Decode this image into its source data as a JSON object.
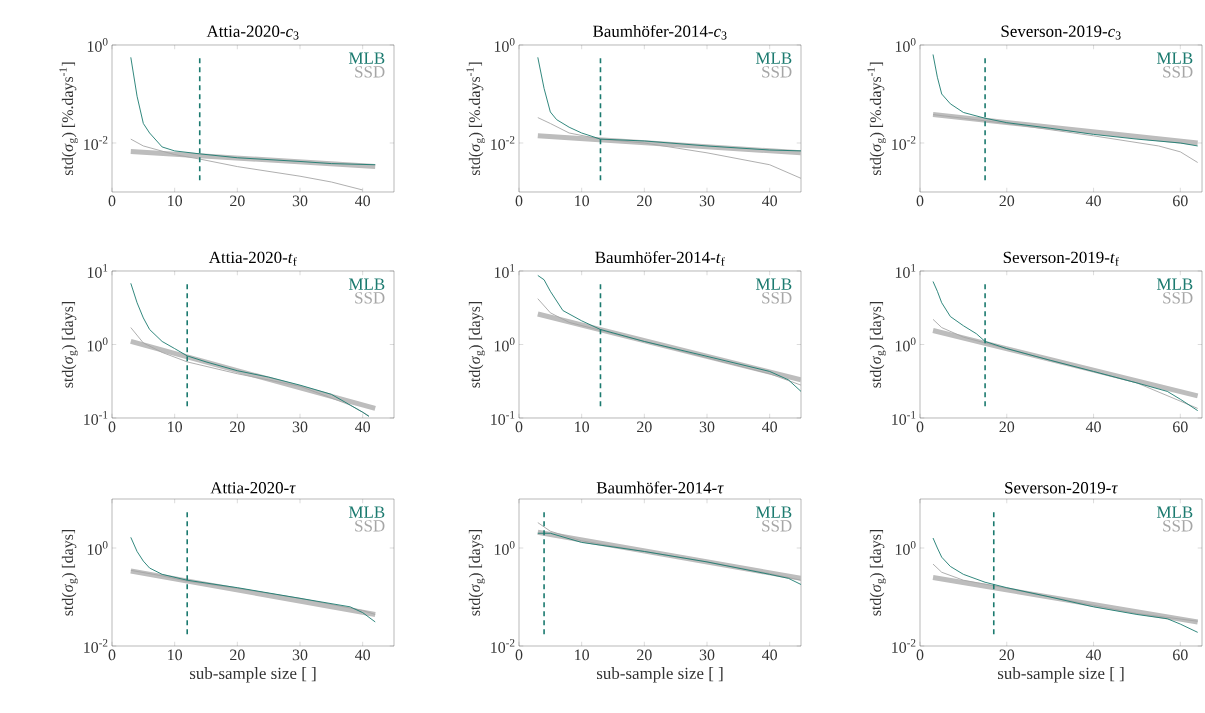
{
  "chart_data": [
    {
      "type": "line",
      "title": "Attia-2020-*c*$_{3}$",
      "ylabel": "std(*σ*$_{g}$) [%.days$^{-1}$]",
      "log": "y",
      "legend": "top right",
      "xlim": [
        0,
        45
      ],
      "xticks": [
        0,
        10,
        20,
        30,
        40
      ],
      "ylim": [
        0.001,
        1
      ],
      "yticks": [
        {
          "value": 0.01,
          "label": "10$^{-2}$"
        },
        {
          "value": 1,
          "label": "10$^{0}$"
        }
      ],
      "ref_lines": [
        {
          "axis": "x",
          "value": 14,
          "color": "#1b7a6f",
          "line_style": "dashed"
        }
      ],
      "series": [
        {
          "color": "#bdbdbd",
          "x": [
            3,
            42
          ],
          "values": [
            0.0067,
            0.0033
          ]
        },
        {
          "name": "SSD",
          "color": "#a6a6a6",
          "x": [
            3,
            5,
            10,
            14,
            20,
            30,
            35,
            40
          ],
          "values": [
            0.012,
            0.0087,
            0.0058,
            0.0047,
            0.0033,
            0.0021,
            0.0016,
            0.0011
          ]
        },
        {
          "name": "MLB",
          "color": "#1b7a6f",
          "x": [
            3,
            4,
            5,
            6,
            8,
            10,
            14,
            20,
            30,
            35,
            42
          ],
          "values": [
            0.56,
            0.09,
            0.025,
            0.016,
            0.0083,
            0.0069,
            0.006,
            0.005,
            0.0042,
            0.0038,
            0.0036
          ]
        }
      ]
    },
    {
      "type": "line",
      "title": "Baumhöfer-2014-*c*$_{3}$",
      "ylabel": "std(*σ*$_{g}$) [%.days$^{-1}$]",
      "log": "y",
      "legend": "top right",
      "xlim": [
        0,
        45
      ],
      "xticks": [
        0,
        10,
        20,
        30,
        40
      ],
      "ylim": [
        0.001,
        1
      ],
      "yticks": [
        {
          "value": 0.01,
          "label": "10$^{-2}$"
        },
        {
          "value": 1,
          "label": "10$^{0}$"
        }
      ],
      "ref_lines": [
        {
          "axis": "x",
          "value": 13,
          "color": "#1b7a6f",
          "line_style": "dashed"
        }
      ],
      "series": [
        {
          "color": "#bdbdbd",
          "x": [
            3,
            45
          ],
          "values": [
            0.014,
            0.0063
          ]
        },
        {
          "name": "SSD",
          "color": "#a6a6a6",
          "x": [
            3,
            5,
            8,
            13,
            20,
            30,
            40,
            45
          ],
          "values": [
            0.033,
            0.025,
            0.016,
            0.012,
            0.01,
            0.0063,
            0.0036,
            0.0019
          ]
        },
        {
          "name": "MLB",
          "color": "#1b7a6f",
          "x": [
            3,
            4,
            5,
            6,
            8,
            10,
            13,
            20,
            30,
            40,
            45
          ],
          "values": [
            0.56,
            0.13,
            0.043,
            0.03,
            0.021,
            0.016,
            0.012,
            0.011,
            0.0087,
            0.0072,
            0.0069
          ]
        }
      ]
    },
    {
      "type": "line",
      "title": "Severson-2019-*c*$_{3}$",
      "ylabel": "std(*σ*$_{g}$) [%.days$^{-1}$]",
      "log": "y",
      "legend": "top right",
      "xlim": [
        0,
        65
      ],
      "xticks": [
        0,
        20,
        40,
        60
      ],
      "ylim": [
        0.001,
        1
      ],
      "yticks": [
        {
          "value": 0.01,
          "label": "10$^{-2}$"
        },
        {
          "value": 1,
          "label": "10$^{0}$"
        }
      ],
      "ref_lines": [
        {
          "axis": "x",
          "value": 15,
          "color": "#1b7a6f",
          "line_style": "dashed"
        }
      ],
      "series": [
        {
          "color": "#bdbdbd",
          "x": [
            3,
            64
          ],
          "values": [
            0.038,
            0.01
          ]
        },
        {
          "name": "SSD",
          "color": "#a6a6a6",
          "x": [
            3,
            10,
            20,
            40,
            55,
            60,
            64
          ],
          "values": [
            0.038,
            0.032,
            0.025,
            0.014,
            0.0087,
            0.0066,
            0.004
          ]
        },
        {
          "name": "MLB",
          "color": "#1b7a6f",
          "x": [
            3,
            4,
            5,
            7,
            10,
            15,
            20,
            30,
            40,
            50,
            60,
            64
          ],
          "values": [
            0.64,
            0.22,
            0.1,
            0.063,
            0.042,
            0.032,
            0.026,
            0.02,
            0.015,
            0.012,
            0.01,
            0.0087
          ]
        }
      ]
    },
    {
      "type": "line",
      "title": "Attia-2020-*t*$_{f}$",
      "ylabel": "std(*σ*$_{g}$) [days]",
      "log": "y",
      "legend": "top right",
      "xlim": [
        0,
        45
      ],
      "xticks": [
        0,
        10,
        20,
        30,
        40
      ],
      "ylim": [
        0.1,
        10
      ],
      "yticks": [
        {
          "value": 0.1,
          "label": "10$^{-1}$"
        },
        {
          "value": 1,
          "label": "10$^{0}$"
        },
        {
          "value": 10,
          "label": "10$^{1}$"
        }
      ],
      "ref_lines": [
        {
          "axis": "x",
          "value": 12,
          "color": "#1b7a6f",
          "line_style": "dashed"
        }
      ],
      "series": [
        {
          "color": "#bdbdbd",
          "x": [
            3,
            42
          ],
          "values": [
            1.1,
            0.135
          ]
        },
        {
          "name": "SSD",
          "color": "#a6a6a6",
          "x": [
            3,
            5,
            8,
            12,
            20,
            30,
            38,
            41
          ],
          "values": [
            1.7,
            1.05,
            0.78,
            0.58,
            0.4,
            0.27,
            0.15,
            0.107
          ]
        },
        {
          "name": "MLB",
          "color": "#1b7a6f",
          "x": [
            3,
            4,
            5,
            6,
            8,
            10,
            12,
            15,
            20,
            25,
            30,
            35,
            38,
            40,
            41
          ],
          "values": [
            6.8,
            3.7,
            2.3,
            1.6,
            1.1,
            0.88,
            0.7,
            0.58,
            0.44,
            0.36,
            0.28,
            0.21,
            0.15,
            0.12,
            0.105
          ]
        }
      ]
    },
    {
      "type": "line",
      "title": "Baumhöfer-2014-*t*$_{f}$",
      "ylabel": "std(*σ*$_{g}$) [days]",
      "log": "y",
      "legend": "top right",
      "xlim": [
        0,
        45
      ],
      "xticks": [
        0,
        10,
        20,
        30,
        40
      ],
      "ylim": [
        0.1,
        10
      ],
      "yticks": [
        {
          "value": 0.1,
          "label": "10$^{-1}$"
        },
        {
          "value": 1,
          "label": "10$^{0}$"
        },
        {
          "value": 10,
          "label": "10$^{1}$"
        }
      ],
      "ref_lines": [
        {
          "axis": "x",
          "value": 13,
          "color": "#1b7a6f",
          "line_style": "dashed"
        }
      ],
      "series": [
        {
          "color": "#bdbdbd",
          "x": [
            3,
            45
          ],
          "values": [
            2.6,
            0.33
          ]
        },
        {
          "name": "SSD",
          "color": "#a6a6a6",
          "x": [
            3,
            5,
            8,
            13,
            20,
            30,
            40,
            45
          ],
          "values": [
            4.2,
            2.7,
            2.0,
            1.56,
            1.1,
            0.66,
            0.4,
            0.28
          ]
        },
        {
          "name": "MLB",
          "color": "#1b7a6f",
          "x": [
            3,
            4,
            5,
            7,
            10,
            13,
            20,
            30,
            40,
            43,
            45
          ],
          "values": [
            8.7,
            7.6,
            5.3,
            2.9,
            2.1,
            1.6,
            1.1,
            0.69,
            0.43,
            0.33,
            0.23
          ]
        }
      ]
    },
    {
      "type": "line",
      "title": "Severson-2019-*t*$_{f}$",
      "ylabel": "std(*σ*$_{g}$) [days]",
      "log": "y",
      "legend": "top right",
      "xlim": [
        0,
        65
      ],
      "xticks": [
        0,
        20,
        40,
        60
      ],
      "ylim": [
        0.1,
        10
      ],
      "yticks": [
        {
          "value": 0.1,
          "label": "10$^{-1}$"
        },
        {
          "value": 1,
          "label": "10$^{0}$"
        },
        {
          "value": 10,
          "label": "10$^{1}$"
        }
      ],
      "ref_lines": [
        {
          "axis": "x",
          "value": 15,
          "color": "#1b7a6f",
          "line_style": "dashed"
        }
      ],
      "series": [
        {
          "color": "#bdbdbd",
          "x": [
            3,
            64
          ],
          "values": [
            1.55,
            0.2
          ]
        },
        {
          "name": "SSD",
          "color": "#a6a6a6",
          "x": [
            3,
            5,
            10,
            15,
            30,
            50,
            64
          ],
          "values": [
            2.2,
            1.7,
            1.26,
            1.05,
            0.61,
            0.3,
            0.135
          ]
        },
        {
          "name": "MLB",
          "color": "#1b7a6f",
          "x": [
            3,
            4,
            5,
            7,
            10,
            13,
            15,
            20,
            30,
            40,
            50,
            57,
            60,
            64
          ],
          "values": [
            7.2,
            5.3,
            3.7,
            2.4,
            1.8,
            1.4,
            1.1,
            0.88,
            0.61,
            0.43,
            0.3,
            0.23,
            0.18,
            0.126
          ]
        }
      ]
    },
    {
      "type": "line",
      "title": "Attia-2020-*τ*",
      "xlabel": "sub-sample size [ ]",
      "ylabel": "std(*σ*$_{g}$) [days]",
      "log": "y",
      "legend": "top right",
      "xlim": [
        0,
        45
      ],
      "xticks": [
        0,
        10,
        20,
        30,
        40
      ],
      "ylim": [
        0.01,
        10
      ],
      "yticks": [
        {
          "value": 0.01,
          "label": "10$^{-2}$"
        },
        {
          "value": 1,
          "label": "10$^{0}$"
        }
      ],
      "ref_lines": [
        {
          "axis": "x",
          "value": 12,
          "color": "#1b7a6f",
          "line_style": "dashed"
        }
      ],
      "series": [
        {
          "color": "#bdbdbd",
          "x": [
            3,
            42
          ],
          "values": [
            0.34,
            0.044
          ]
        },
        {
          "name": "SSD",
          "color": "#a6a6a6",
          "x": [
            3,
            8,
            12,
            20,
            30,
            40,
            42
          ],
          "values": [
            0.35,
            0.27,
            0.21,
            0.15,
            0.094,
            0.053,
            0.044
          ]
        },
        {
          "name": "MLB",
          "color": "#1b7a6f",
          "x": [
            3,
            4,
            5,
            6,
            8,
            12,
            20,
            30,
            38,
            40,
            42
          ],
          "values": [
            1.65,
            0.85,
            0.54,
            0.39,
            0.29,
            0.22,
            0.155,
            0.094,
            0.063,
            0.048,
            0.031
          ]
        }
      ]
    },
    {
      "type": "line",
      "title": "Baumhöfer-2014-*τ*",
      "xlabel": "sub-sample size [ ]",
      "ylabel": "std(*σ*$_{g}$) [days]",
      "log": "y",
      "legend": "top right",
      "xlim": [
        0,
        45
      ],
      "xticks": [
        0,
        10,
        20,
        30,
        40
      ],
      "ylim": [
        0.01,
        10
      ],
      "yticks": [
        {
          "value": 0.01,
          "label": "10$^{-2}$"
        },
        {
          "value": 1,
          "label": "10$^{0}$"
        }
      ],
      "ref_lines": [
        {
          "axis": "x",
          "value": 4,
          "color": "#1b7a6f",
          "line_style": "dashed"
        }
      ],
      "series": [
        {
          "color": "#bdbdbd",
          "x": [
            3,
            45
          ],
          "values": [
            2.1,
            0.24
          ]
        },
        {
          "name": "SSD",
          "color": "#a6a6a6",
          "x": [
            3,
            5,
            10,
            20,
            30,
            40,
            45
          ],
          "values": [
            3.3,
            2.2,
            1.4,
            0.85,
            0.52,
            0.3,
            0.22
          ]
        },
        {
          "name": "MLB",
          "color": "#1b7a6f",
          "x": [
            3,
            5,
            10,
            20,
            30,
            40,
            43,
            45
          ],
          "values": [
            2.0,
            2.0,
            1.3,
            0.85,
            0.52,
            0.29,
            0.24,
            0.18
          ]
        }
      ]
    },
    {
      "type": "line",
      "title": "Severson-2019-*τ*",
      "xlabel": "sub-sample size [ ]",
      "ylabel": "std(*σ*$_{g}$) [days]",
      "log": "y",
      "legend": "top right",
      "xlim": [
        0,
        65
      ],
      "xticks": [
        0,
        20,
        40,
        60
      ],
      "ylim": [
        0.01,
        10
      ],
      "yticks": [
        {
          "value": 0.01,
          "label": "10$^{-2}$"
        },
        {
          "value": 1,
          "label": "10$^{0}$"
        }
      ],
      "ref_lines": [
        {
          "axis": "x",
          "value": 17,
          "color": "#1b7a6f",
          "line_style": "dashed"
        }
      ],
      "series": [
        {
          "color": "#bdbdbd",
          "x": [
            3,
            64
          ],
          "values": [
            0.25,
            0.031
          ]
        },
        {
          "name": "SSD",
          "color": "#a6a6a6",
          "x": [
            3,
            5,
            10,
            17,
            30,
            50,
            64
          ],
          "values": [
            0.47,
            0.32,
            0.22,
            0.17,
            0.1,
            0.046,
            0.032
          ]
        },
        {
          "name": "MLB",
          "color": "#1b7a6f",
          "x": [
            3,
            4,
            5,
            7,
            10,
            15,
            20,
            30,
            40,
            50,
            57,
            60,
            64
          ],
          "values": [
            1.6,
            1.0,
            0.65,
            0.42,
            0.29,
            0.2,
            0.155,
            0.1,
            0.063,
            0.044,
            0.036,
            0.028,
            0.019
          ]
        }
      ]
    }
  ]
}
